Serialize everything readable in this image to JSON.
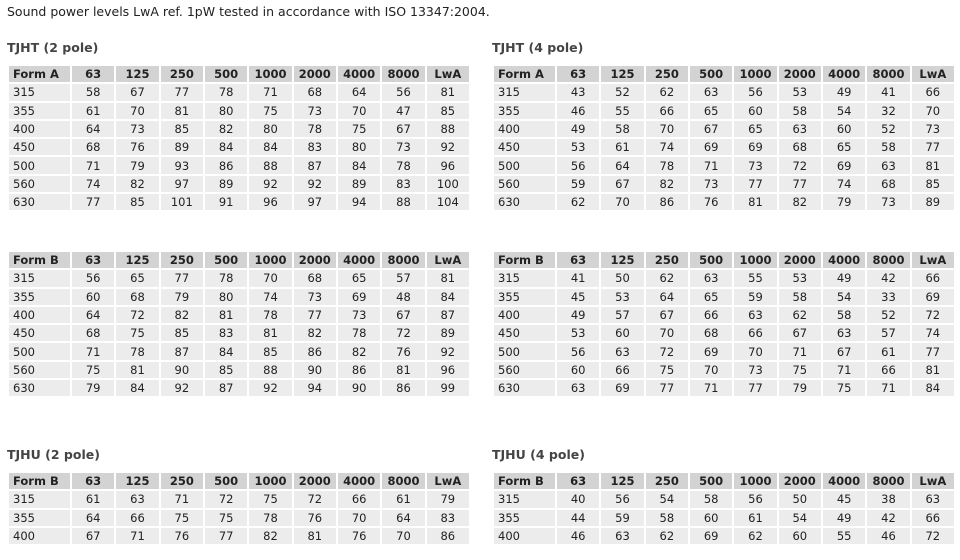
{
  "intro": "Sound power levels LwA ref. 1pW tested in accordance with ISO 13347:2004.",
  "blocks": [
    {
      "title": "TJHT (2 pole)",
      "header": [
        "Form A",
        "63",
        "125",
        "250",
        "500",
        "1000",
        "2000",
        "4000",
        "8000",
        "LwA"
      ],
      "rows": [
        [
          "315",
          58,
          67,
          77,
          78,
          71,
          68,
          64,
          56,
          81
        ],
        [
          "355",
          61,
          70,
          81,
          80,
          75,
          73,
          70,
          47,
          85
        ],
        [
          "400",
          64,
          73,
          85,
          82,
          80,
          78,
          75,
          67,
          88
        ],
        [
          "450",
          68,
          76,
          89,
          84,
          84,
          83,
          80,
          73,
          92
        ],
        [
          "500",
          71,
          79,
          93,
          86,
          88,
          87,
          84,
          78,
          96
        ],
        [
          "560",
          74,
          82,
          97,
          89,
          92,
          92,
          89,
          83,
          100
        ],
        [
          "630",
          77,
          85,
          101,
          91,
          96,
          97,
          94,
          88,
          104
        ]
      ]
    },
    {
      "title": "TJHT (4 pole)",
      "header": [
        "Form A",
        "63",
        "125",
        "250",
        "500",
        "1000",
        "2000",
        "4000",
        "8000",
        "LwA"
      ],
      "rows": [
        [
          "315",
          43,
          52,
          62,
          63,
          56,
          53,
          49,
          41,
          66
        ],
        [
          "355",
          46,
          55,
          66,
          65,
          60,
          58,
          54,
          32,
          70
        ],
        [
          "400",
          49,
          58,
          70,
          67,
          65,
          63,
          60,
          52,
          73
        ],
        [
          "450",
          53,
          61,
          74,
          69,
          69,
          68,
          65,
          58,
          77
        ],
        [
          "500",
          56,
          64,
          78,
          71,
          73,
          72,
          69,
          63,
          81
        ],
        [
          "560",
          59,
          67,
          82,
          73,
          77,
          77,
          74,
          68,
          85
        ],
        [
          "630",
          62,
          70,
          86,
          76,
          81,
          82,
          79,
          73,
          89
        ]
      ]
    },
    {
      "header": [
        "Form B",
        "63",
        "125",
        "250",
        "500",
        "1000",
        "2000",
        "4000",
        "8000",
        "LwA"
      ],
      "rows": [
        [
          "315",
          56,
          65,
          77,
          78,
          70,
          68,
          65,
          57,
          81
        ],
        [
          "355",
          60,
          68,
          79,
          80,
          74,
          73,
          69,
          48,
          84
        ],
        [
          "400",
          64,
          72,
          82,
          81,
          78,
          77,
          73,
          67,
          87
        ],
        [
          "450",
          68,
          75,
          85,
          83,
          81,
          82,
          78,
          72,
          89
        ],
        [
          "500",
          71,
          78,
          87,
          84,
          85,
          86,
          82,
          76,
          92
        ],
        [
          "560",
          75,
          81,
          90,
          85,
          88,
          90,
          86,
          81,
          96
        ],
        [
          "630",
          79,
          84,
          92,
          87,
          92,
          94,
          90,
          86,
          99
        ]
      ]
    },
    {
      "header": [
        "Form B",
        "63",
        "125",
        "250",
        "500",
        "1000",
        "2000",
        "4000",
        "8000",
        "LwA"
      ],
      "rows": [
        [
          "315",
          41,
          50,
          62,
          63,
          55,
          53,
          49,
          42,
          66
        ],
        [
          "355",
          45,
          53,
          64,
          65,
          59,
          58,
          54,
          33,
          69
        ],
        [
          "400",
          49,
          57,
          67,
          66,
          63,
          62,
          58,
          52,
          72
        ],
        [
          "450",
          53,
          60,
          70,
          68,
          66,
          67,
          63,
          57,
          74
        ],
        [
          "500",
          56,
          63,
          72,
          69,
          70,
          71,
          67,
          61,
          77
        ],
        [
          "560",
          60,
          66,
          75,
          70,
          73,
          75,
          71,
          66,
          81
        ],
        [
          "630",
          63,
          69,
          77,
          71,
          77,
          79,
          75,
          71,
          84
        ]
      ]
    },
    {
      "title": "TJHU (2 pole)",
      "header": [
        "Form B",
        "63",
        "125",
        "250",
        "500",
        "1000",
        "2000",
        "4000",
        "8000",
        "LwA"
      ],
      "rows": [
        [
          "315",
          61,
          63,
          71,
          72,
          75,
          72,
          66,
          61,
          79
        ],
        [
          "355",
          64,
          66,
          75,
          75,
          78,
          76,
          70,
          64,
          83
        ],
        [
          "400",
          67,
          71,
          76,
          77,
          82,
          81,
          76,
          70,
          86
        ]
      ]
    },
    {
      "title": "TJHU (4 pole)",
      "header": [
        "Form B",
        "63",
        "125",
        "250",
        "500",
        "1000",
        "2000",
        "4000",
        "8000",
        "LwA"
      ],
      "rows": [
        [
          "315",
          40,
          56,
          54,
          58,
          56,
          50,
          45,
          38,
          63
        ],
        [
          "355",
          44,
          59,
          58,
          60,
          61,
          54,
          49,
          42,
          66
        ],
        [
          "400",
          46,
          63,
          62,
          69,
          62,
          60,
          55,
          46,
          72
        ]
      ]
    }
  ]
}
